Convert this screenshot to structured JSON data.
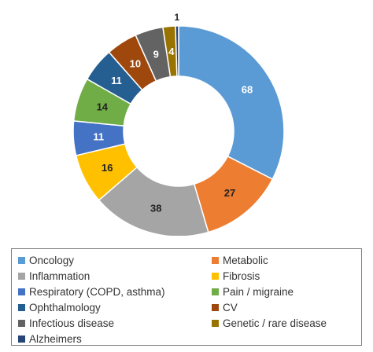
{
  "chart_data": {
    "type": "pie",
    "donut": true,
    "categories": [
      "Oncology",
      "Metabolic",
      "Inflammation",
      "Fibrosis",
      "Respiratory (COPD, asthma)",
      "Pain / migraine",
      "Ophthalmology",
      "CV",
      "Infectious disease",
      "Genetic / rare disease",
      "Alzheimers"
    ],
    "values": [
      68,
      27,
      38,
      16,
      11,
      14,
      11,
      10,
      9,
      4,
      1
    ],
    "colors": [
      "#5b9bd5",
      "#ed7d31",
      "#a5a5a5",
      "#ffc000",
      "#4472c4",
      "#70ad47",
      "#255e91",
      "#9e480e",
      "#636363",
      "#997300",
      "#264478"
    ],
    "label_colors": [
      "#ffffff",
      "#222222",
      "#222222",
      "#222222",
      "#ffffff",
      "#222222",
      "#ffffff",
      "#ffffff",
      "#ffffff",
      "#ffffff",
      "#222222"
    ],
    "legend_placement": "bottom"
  }
}
